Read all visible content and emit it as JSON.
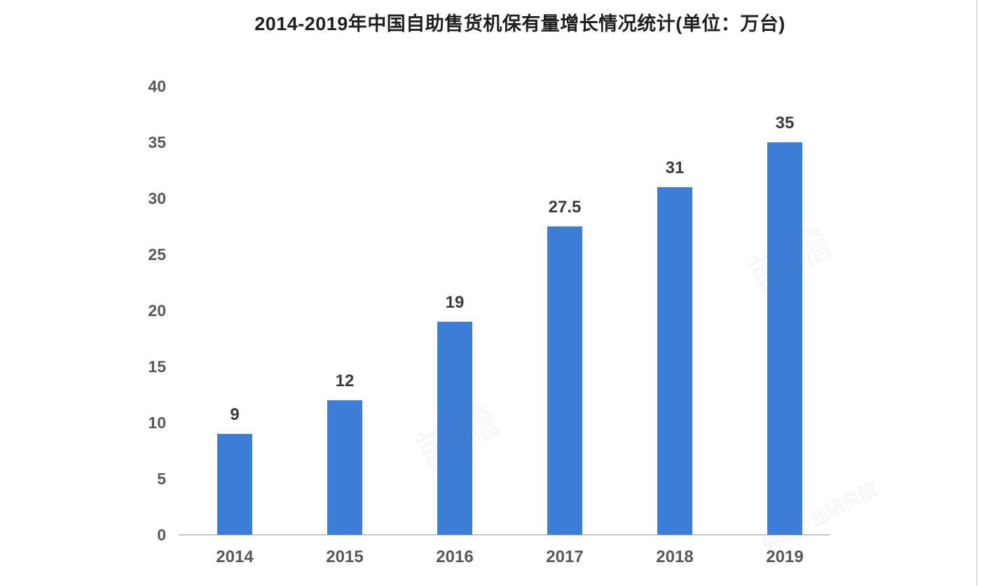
{
  "title": "2014-2019年中国自助售货机保有量增长情况统计(单位：万台)",
  "chart_data": {
    "type": "bar",
    "title": "2014-2019年中国自助售货机保有量增长情况统计(单位：万台)",
    "unit_label": "万台",
    "categories": [
      "2014",
      "2015",
      "2016",
      "2017",
      "2018",
      "2019"
    ],
    "values": [
      9,
      12,
      19,
      27.5,
      31,
      35
    ],
    "value_labels": [
      "9",
      "12",
      "19",
      "27.5",
      "31",
      "35"
    ],
    "xlabel": "",
    "ylabel": "",
    "ylim": [
      0,
      40
    ],
    "yticks": [
      0,
      5,
      10,
      15,
      20,
      25,
      30,
      35,
      40
    ],
    "grid": false,
    "legend": false,
    "colors": {
      "bar": "#3c7dd7",
      "axis_line": "#c8c8c8",
      "tick_label": "#595959",
      "value_label": "#3a3a3a",
      "title": "#1f1f1f"
    }
  },
  "watermarks": [
    {
      "text": "前瞻"
    },
    {
      "text": "前瞻"
    },
    {
      "text": "前瞻产业研究院"
    }
  ]
}
